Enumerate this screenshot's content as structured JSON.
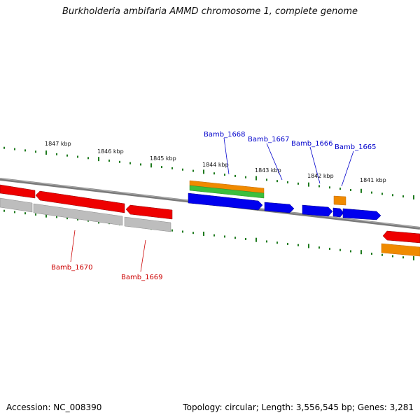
{
  "title": "Burkholderia ambifaria AMMD chromosome 1, complete genome",
  "footer": {
    "accession": "Accession: NC_008390",
    "summary": "Topology: circular; Length: 3,556,545 bp; Genes: 3,281"
  },
  "colors": {
    "backbone": "#8a8a8a",
    "tick": "#1e7a1e",
    "forward_gene": "#0000ee",
    "reverse_gene": "#ee0000",
    "rna": "#f08a00",
    "green_feature": "#3cbf3c",
    "pseudo_gray": "#bdbdbd",
    "forward_label": "#0000cc",
    "reverse_label": "#cc0000"
  },
  "scale": {
    "kbp_labels": [
      "1847 kbp",
      "1846 kbp",
      "1845 kbp",
      "1844 kbp",
      "1843 kbp",
      "1842 kbp",
      "1841 kbp"
    ]
  },
  "genes": {
    "forward_labels": [
      "Bamb_1668",
      "Bamb_1667",
      "Bamb_1666",
      "Bamb_1665"
    ],
    "reverse_labels": [
      "Bamb_1670",
      "Bamb_1669"
    ]
  }
}
